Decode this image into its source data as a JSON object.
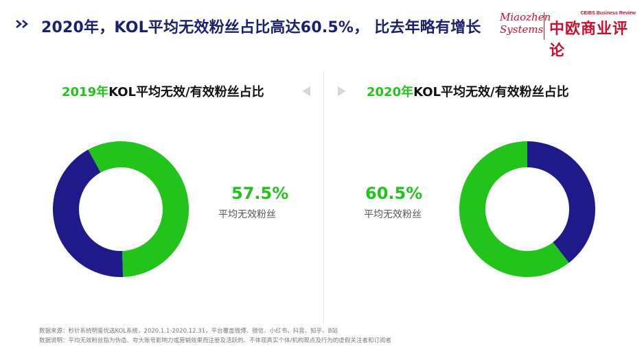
{
  "header": {
    "title": "2020年，KOL平均无效粉丝占比高达60.5%， 比去年略有增长",
    "logo_miaozhen_line1": "Miaozhen",
    "logo_miaozhen_line2": "Systems",
    "logo_ceibs_en": "CEIBS Business Review",
    "logo_ceibs_cn": "中欧商业评论"
  },
  "panels": [
    {
      "title_year": "2019年",
      "title_rest": "KOL平均无效/有效粉丝占比",
      "pct": "57.5%",
      "pct_label": "平均无效粉丝"
    },
    {
      "title_year": "2020年",
      "title_rest": "KOL平均无效/有效粉丝占比",
      "pct": "60.5%",
      "pct_label": "平均无效粉丝"
    }
  ],
  "colors": {
    "invalid": "#22c41c",
    "valid": "#1f1a8a",
    "title": "#1a1f6e"
  },
  "chart_data": [
    {
      "type": "pie",
      "title": "2019年KOL平均无效/有效粉丝占比",
      "slices": [
        {
          "name": "平均无效粉丝",
          "value": 57.5
        },
        {
          "name": "",
          "value": 42.5
        }
      ]
    },
    {
      "type": "pie",
      "title": "2020年KOL平均无效/有效粉丝占比",
      "slices": [
        {
          "name": "平均无效粉丝",
          "value": 60.5
        },
        {
          "name": "",
          "value": 39.5
        }
      ]
    }
  ],
  "footnotes": {
    "source": "数据来源：秒针系统明鉴优选KOL系统，2020.1.1-2020.12.31，平台覆盖微博、微信、小红书、抖音、知乎、B站",
    "note": "数据说明：平均无效粉丝指为伪造、夸大账号影响力或营销效果而注册及活跃的、不体现真实个体/机构观点及行为的虚假关注者和订阅者"
  }
}
